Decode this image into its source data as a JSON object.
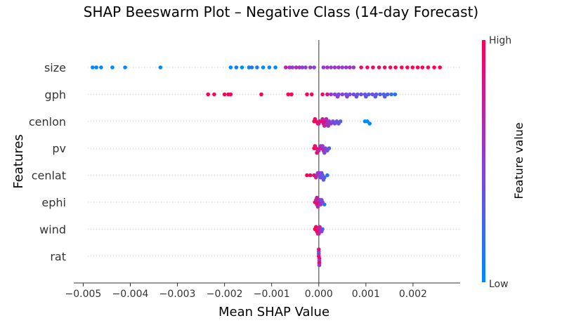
{
  "chart_data": {
    "type": "scatter",
    "subtype": "shap-beeswarm",
    "title": "SHAP Beeswarm Plot – Negative Class (14-day Forecast)",
    "xlabel": "Mean SHAP Value",
    "ylabel": "Features",
    "xlim": [
      -0.0052,
      0.003
    ],
    "xticks": [
      -0.005,
      -0.004,
      -0.003,
      -0.002,
      -0.001,
      0.0,
      0.001,
      0.002
    ],
    "xtick_labels": [
      "−0.005",
      "−0.004",
      "−0.003",
      "−0.002",
      "−0.001",
      "0.000",
      "0.001",
      "0.002"
    ],
    "grid": false,
    "colorbar": {
      "label": "Feature value",
      "high_label": "High",
      "low_label": "Low",
      "low_color": "#008afb",
      "mid_color": "#8a3fd8",
      "high_color": "#ff0052"
    },
    "features": [
      {
        "name": "size",
        "points": [
          [
            -0.0048,
            0.0
          ],
          [
            -0.00472,
            0.0
          ],
          [
            -0.00462,
            0.0
          ],
          [
            -0.00438,
            0.0
          ],
          [
            -0.00411,
            0.0
          ],
          [
            -0.00336,
            0.0
          ],
          [
            -0.00187,
            0.0
          ],
          [
            -0.00175,
            0.1
          ],
          [
            -0.00163,
            0.0
          ],
          [
            -0.00148,
            0.05
          ],
          [
            -0.00142,
            0.1
          ],
          [
            -0.00131,
            0.1
          ],
          [
            -0.00118,
            0.0
          ],
          [
            -0.00105,
            0.0
          ],
          [
            -0.00092,
            0.0
          ],
          [
            -0.0007,
            0.7
          ],
          [
            -0.00062,
            0.6
          ],
          [
            -0.00056,
            0.55
          ],
          [
            -0.00048,
            0.65
          ],
          [
            -0.00041,
            0.6
          ],
          [
            -0.00035,
            0.5
          ],
          [
            -0.00028,
            0.55
          ],
          [
            -0.00018,
            0.6
          ],
          [
            -0.0001,
            0.5
          ],
          [
            0.0001,
            0.55
          ],
          [
            0.00018,
            0.6
          ],
          [
            0.00026,
            0.5
          ],
          [
            0.00034,
            0.55
          ],
          [
            0.00042,
            0.6
          ],
          [
            0.0005,
            0.5
          ],
          [
            0.00058,
            0.55
          ],
          [
            0.00066,
            0.6
          ],
          [
            0.00074,
            0.55
          ],
          [
            0.0009,
            0.9
          ],
          [
            0.00103,
            0.9
          ],
          [
            0.00115,
            0.95
          ],
          [
            0.00128,
            0.95
          ],
          [
            0.0014,
            0.92
          ],
          [
            0.00152,
            0.95
          ],
          [
            0.00163,
            0.95
          ],
          [
            0.00176,
            1.0
          ],
          [
            0.00188,
            1.0
          ],
          [
            0.00199,
            0.97
          ],
          [
            0.0021,
            1.0
          ],
          [
            0.0022,
            1.0
          ],
          [
            0.00232,
            1.0
          ],
          [
            0.00245,
            1.0
          ],
          [
            0.00257,
            1.0
          ]
        ]
      },
      {
        "name": "gph",
        "points": [
          [
            -0.00235,
            1.0
          ],
          [
            -0.00222,
            1.0
          ],
          [
            -0.002,
            1.0
          ],
          [
            -0.00192,
            1.0
          ],
          [
            -0.00187,
            0.95
          ],
          [
            -0.00122,
            1.0
          ],
          [
            -0.00065,
            1.0
          ],
          [
            -0.00058,
            1.0
          ],
          [
            -0.00025,
            1.0
          ],
          [
            -0.00015,
            1.0
          ],
          [
            8e-05,
            0.9
          ],
          [
            0.00018,
            0.85
          ],
          [
            0.00026,
            0.55
          ],
          [
            0.00034,
            0.5
          ],
          [
            0.00042,
            0.45
          ],
          [
            0.0005,
            0.5
          ],
          [
            0.00058,
            0.4
          ],
          [
            0.00066,
            0.45
          ],
          [
            0.00074,
            0.4
          ],
          [
            0.00082,
            0.35
          ],
          [
            0.0009,
            0.4
          ],
          [
            0.00098,
            0.35
          ],
          [
            0.00106,
            0.3
          ],
          [
            0.00114,
            0.4
          ],
          [
            0.00122,
            0.35
          ],
          [
            0.0013,
            0.3
          ],
          [
            0.00138,
            0.25
          ],
          [
            0.00146,
            0.3
          ],
          [
            0.00154,
            0.2
          ],
          [
            0.00162,
            0.15
          ],
          [
            0.0004,
            0.5
          ],
          [
            0.0006,
            0.45
          ],
          [
            0.0008,
            0.4
          ],
          [
            0.001,
            0.35
          ],
          [
            0.0012,
            0.3
          ],
          [
            0.0014,
            0.3
          ]
        ]
      },
      {
        "name": "cenlon",
        "points": [
          [
            -0.0001,
            1.0
          ],
          [
            -6e-05,
            0.95
          ],
          [
            -2e-05,
            0.9
          ],
          [
            2e-05,
            0.85
          ],
          [
            6e-05,
            0.9
          ],
          [
            0.0001,
            0.8
          ],
          [
            0.00014,
            0.85
          ],
          [
            0.00018,
            0.6
          ],
          [
            0.00022,
            0.55
          ],
          [
            0.00026,
            0.5
          ],
          [
            0.0003,
            0.45
          ],
          [
            0.00034,
            0.4
          ],
          [
            0.00038,
            0.35
          ],
          [
            0.00042,
            0.4
          ],
          [
            0.00046,
            0.3
          ],
          [
            0.00098,
            0.0
          ],
          [
            0.00103,
            0.0
          ],
          [
            0.00108,
            0.0
          ],
          [
            -8e-05,
            0.9
          ],
          [
            0.0,
            0.8
          ],
          [
            8e-05,
            0.75
          ],
          [
            0.00012,
            0.7
          ],
          [
            0.00016,
            0.65
          ],
          [
            0.0002,
            0.6
          ]
        ]
      },
      {
        "name": "pv",
        "points": [
          [
            -0.0001,
            1.0
          ],
          [
            -6e-05,
            0.95
          ],
          [
            -2e-05,
            0.9
          ],
          [
            2e-05,
            0.85
          ],
          [
            6e-05,
            0.8
          ],
          [
            0.0001,
            0.6
          ],
          [
            0.00014,
            0.5
          ],
          [
            0.00018,
            0.4
          ],
          [
            0.00022,
            0.3
          ],
          [
            -8e-05,
            0.9
          ],
          [
            0.0,
            0.7
          ],
          [
            4e-05,
            0.6
          ],
          [
            8e-05,
            0.5
          ],
          [
            -4e-05,
            0.85
          ],
          [
            0.00012,
            0.45
          ]
        ]
      },
      {
        "name": "cenlat",
        "points": [
          [
            -0.00025,
            1.0
          ],
          [
            -0.00018,
            0.95
          ],
          [
            -0.0001,
            0.9
          ],
          [
            -4e-05,
            0.6
          ],
          [
            0.0,
            0.5
          ],
          [
            4e-05,
            0.4
          ],
          [
            8e-05,
            0.35
          ],
          [
            0.00012,
            0.3
          ],
          [
            0.00018,
            0.1
          ],
          [
            -6e-05,
            0.7
          ],
          [
            2e-05,
            0.45
          ],
          [
            6e-05,
            0.4
          ],
          [
            -2e-05,
            0.55
          ],
          [
            0.0001,
            0.3
          ]
        ]
      },
      {
        "name": "ephi",
        "points": [
          [
            -8e-05,
            0.9
          ],
          [
            -4e-05,
            0.85
          ],
          [
            0.0,
            0.8
          ],
          [
            4e-05,
            0.6
          ],
          [
            8e-05,
            0.5
          ],
          [
            0.00012,
            0.1
          ],
          [
            -6e-05,
            0.7
          ],
          [
            -2e-05,
            0.65
          ],
          [
            2e-05,
            0.55
          ],
          [
            6e-05,
            0.45
          ],
          [
            -4e-05,
            0.75
          ]
        ]
      },
      {
        "name": "wind",
        "points": [
          [
            -8e-05,
            1.0
          ],
          [
            -4e-05,
            0.9
          ],
          [
            0.0,
            0.85
          ],
          [
            4e-05,
            0.6
          ],
          [
            8e-05,
            0.3
          ],
          [
            -6e-05,
            0.95
          ],
          [
            -2e-05,
            0.8
          ],
          [
            2e-05,
            0.7
          ],
          [
            6e-05,
            0.5
          ],
          [
            0.0,
            0.75
          ]
        ]
      },
      {
        "name": "rat",
        "points": [
          [
            0.0,
            1.0
          ],
          [
            1e-05,
            0.9
          ],
          [
            0.0,
            0.6
          ],
          [
            1e-05,
            0.5
          ],
          [
            0.0,
            0.4
          ],
          [
            1e-05,
            0.95
          ],
          [
            0.0,
            0.85
          ],
          [
            1e-05,
            0.55
          ]
        ]
      }
    ]
  }
}
